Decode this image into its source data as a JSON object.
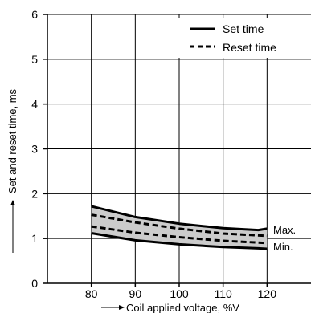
{
  "chart_data": {
    "type": "line",
    "xlabel": "Coil applied voltage, %V",
    "ylabel": "Set and reset time, ms",
    "xlim": [
      70,
      130
    ],
    "ylim": [
      0,
      6
    ],
    "x_ticks": [
      80,
      90,
      100,
      110,
      120
    ],
    "y_ticks": [
      0,
      1,
      2,
      3,
      4,
      5,
      6
    ],
    "grid": true,
    "legend_position": "top-right",
    "legend": [
      {
        "label": "Set time",
        "style": "solid"
      },
      {
        "label": "Reset time",
        "style": "dashed"
      }
    ],
    "annotations": {
      "max": "Max.",
      "min": "Min."
    },
    "band_fill": "#cccccc",
    "series": [
      {
        "name": "Set time",
        "bound": "max",
        "style": "solid",
        "x": [
          80,
          90,
          100,
          110,
          118,
          120
        ],
        "y": [
          1.72,
          1.48,
          1.33,
          1.23,
          1.19,
          1.22
        ]
      },
      {
        "name": "Set time",
        "bound": "min",
        "style": "solid",
        "x": [
          80,
          90,
          100,
          110,
          118,
          120
        ],
        "y": [
          1.12,
          0.96,
          0.87,
          0.81,
          0.78,
          0.77
        ]
      },
      {
        "name": "Reset time",
        "bound": "max",
        "style": "dashed",
        "x": [
          80,
          90,
          100,
          110,
          120
        ],
        "y": [
          1.53,
          1.36,
          1.22,
          1.11,
          1.06
        ]
      },
      {
        "name": "Reset time",
        "bound": "min",
        "style": "dashed",
        "x": [
          80,
          90,
          100,
          110,
          120
        ],
        "y": [
          1.27,
          1.13,
          1.03,
          0.95,
          0.9
        ]
      }
    ]
  }
}
